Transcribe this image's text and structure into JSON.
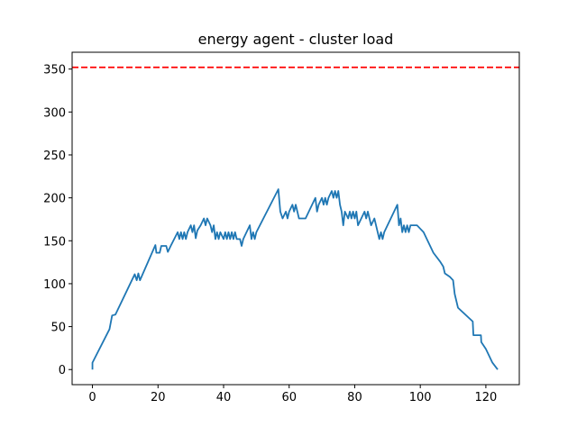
{
  "chart_data": {
    "type": "line",
    "title": "energy agent - cluster load",
    "x": [
      0,
      0,
      5.2,
      6,
      7,
      12.9,
      13.5,
      14,
      14.5,
      19.2,
      19.5,
      20.5,
      21,
      22.5,
      23,
      24,
      26,
      26.5,
      27,
      27.5,
      28,
      28.5,
      29,
      30,
      30.5,
      31,
      31.5,
      32,
      33,
      34,
      34.5,
      35,
      36,
      36.5,
      37,
      37.5,
      38,
      38.5,
      39,
      40,
      40.5,
      41,
      41.5,
      42,
      42.5,
      43,
      43.5,
      44,
      45,
      45.5,
      46,
      48,
      48.5,
      49,
      49.5,
      50,
      56.7,
      57.3,
      58,
      59,
      59.5,
      60,
      61,
      61.5,
      62,
      63,
      65,
      67,
      68,
      68.5,
      69,
      70,
      70.5,
      71,
      71.5,
      72,
      73,
      73.5,
      74,
      74.5,
      75,
      75.5,
      76,
      76.5,
      77,
      78,
      78.5,
      79,
      79.5,
      80,
      80.5,
      81,
      82,
      83,
      83.5,
      84,
      85,
      86,
      87,
      87.5,
      88,
      88.5,
      89,
      93,
      93.5,
      94,
      94.5,
      95,
      95.5,
      96,
      96.5,
      97,
      98,
      99,
      100,
      101,
      102,
      104,
      106,
      107,
      107.5,
      109,
      110,
      110.5,
      111,
      111.5,
      116,
      116.2,
      118.5,
      118.6,
      120,
      121,
      122,
      123.6
    ],
    "values": [
      0,
      8,
      47,
      63,
      64,
      111,
      104,
      112,
      104,
      145,
      136,
      136,
      144,
      144,
      137,
      145,
      160,
      152,
      160,
      152,
      160,
      152,
      160,
      168,
      160,
      168,
      153,
      162,
      168,
      176,
      168,
      176,
      168,
      160,
      168,
      152,
      160,
      152,
      160,
      152,
      160,
      152,
      160,
      152,
      160,
      152,
      160,
      152,
      152,
      144,
      152,
      168,
      152,
      160,
      152,
      160,
      210,
      184,
      176,
      184,
      176,
      184,
      192,
      184,
      192,
      176,
      176,
      192,
      200,
      184,
      192,
      200,
      192,
      200,
      192,
      200,
      208,
      200,
      208,
      200,
      208,
      192,
      184,
      168,
      184,
      176,
      184,
      176,
      184,
      176,
      184,
      168,
      176,
      184,
      176,
      184,
      168,
      176,
      160,
      152,
      160,
      152,
      160,
      192,
      168,
      176,
      160,
      168,
      160,
      168,
      160,
      168,
      168,
      168,
      164,
      160,
      152,
      136,
      126,
      120,
      112,
      108,
      104,
      88,
      80,
      72,
      56,
      40,
      40,
      32,
      24,
      16,
      8,
      0
    ],
    "color": "#1f77b4",
    "threshold": 352,
    "threshold_color": "#ff0000",
    "xlim": [
      -6.2,
      130.2
    ],
    "ylim": [
      -17.6,
      369.6
    ],
    "xticks": [
      0,
      20,
      40,
      60,
      80,
      100,
      120
    ],
    "yticks": [
      0,
      50,
      100,
      150,
      200,
      250,
      300,
      350
    ]
  }
}
